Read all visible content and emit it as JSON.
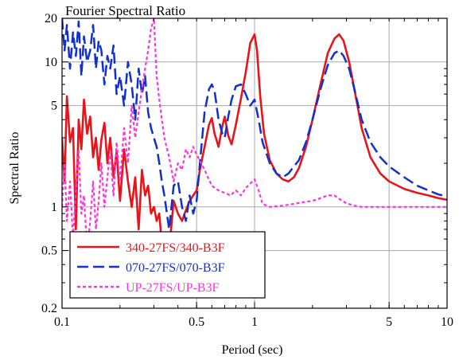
{
  "chart_data": {
    "type": "line",
    "title": "Fourier Spectral Ratio",
    "xlabel": "Period (sec)",
    "ylabel": "Spectral Ratio",
    "xscale": "log",
    "yscale": "log",
    "xlim": [
      0.1,
      10
    ],
    "ylim": [
      0.2,
      20
    ],
    "grid": true,
    "legend_position": "bottom-left",
    "x_ticks": [
      {
        "value": 0.1,
        "label": "0.1"
      },
      {
        "value": 0.5,
        "label": "0.5"
      },
      {
        "value": 1,
        "label": "1"
      },
      {
        "value": 5,
        "label": "5"
      },
      {
        "value": 10,
        "label": "10"
      }
    ],
    "y_ticks": [
      {
        "value": 0.2,
        "label": "0.2"
      },
      {
        "value": 0.5,
        "label": "0.5"
      },
      {
        "value": 1,
        "label": "1"
      },
      {
        "value": 5,
        "label": "5"
      },
      {
        "value": 10,
        "label": "10"
      },
      {
        "value": 20,
        "label": "20"
      }
    ],
    "series": [
      {
        "name": "340-27FS/340-B3F",
        "color": "#e8141a",
        "dash": "solid",
        "x": [
          0.1,
          0.103,
          0.106,
          0.11,
          0.114,
          0.118,
          0.122,
          0.126,
          0.13,
          0.135,
          0.14,
          0.145,
          0.15,
          0.155,
          0.16,
          0.166,
          0.172,
          0.178,
          0.185,
          0.192,
          0.2,
          0.21,
          0.22,
          0.23,
          0.24,
          0.25,
          0.26,
          0.27,
          0.28,
          0.29,
          0.3,
          0.31,
          0.32,
          0.33,
          0.34,
          0.36,
          0.38,
          0.4,
          0.42,
          0.44,
          0.46,
          0.48,
          0.5,
          0.52,
          0.55,
          0.58,
          0.6,
          0.62,
          0.65,
          0.68,
          0.7,
          0.73,
          0.76,
          0.8,
          0.85,
          0.9,
          0.95,
          1.0,
          1.03,
          1.07,
          1.12,
          1.2,
          1.3,
          1.4,
          1.5,
          1.6,
          1.7,
          1.85,
          2.0,
          2.2,
          2.4,
          2.6,
          2.75,
          2.9,
          3.1,
          3.3,
          3.6,
          4.0,
          4.5,
          5.0,
          6.0,
          7.0,
          8.0,
          9.0,
          10.0
        ],
        "y": [
          3.0,
          1.5,
          5.8,
          2.8,
          3.5,
          0.7,
          4.0,
          2.5,
          5.5,
          3.2,
          4.2,
          2.2,
          3.0,
          1.8,
          2.9,
          3.8,
          2.0,
          3.0,
          1.6,
          2.4,
          1.1,
          2.5,
          1.5,
          1.0,
          1.6,
          0.7,
          1.8,
          1.2,
          1.4,
          0.9,
          1.0,
          0.8,
          0.9,
          0.55,
          0.25,
          0.5,
          1.1,
          0.9,
          0.8,
          0.95,
          1.1,
          1.2,
          1.3,
          1.8,
          2.6,
          3.7,
          4.1,
          3.2,
          2.6,
          3.6,
          4.2,
          3.1,
          2.7,
          3.7,
          5.6,
          8.5,
          13.5,
          15.5,
          12.0,
          5.8,
          3.2,
          2.1,
          1.7,
          1.55,
          1.5,
          1.6,
          1.85,
          2.6,
          4.0,
          7.0,
          11.5,
          14.5,
          15.5,
          14.0,
          10.0,
          6.5,
          3.5,
          2.2,
          1.7,
          1.5,
          1.33,
          1.25,
          1.2,
          1.15,
          1.12
        ]
      },
      {
        "name": "070-27FS/070-B3F",
        "color": "#1030d0",
        "dash": "long-dash",
        "x": [
          0.1,
          0.103,
          0.106,
          0.11,
          0.114,
          0.118,
          0.122,
          0.126,
          0.13,
          0.135,
          0.14,
          0.145,
          0.15,
          0.155,
          0.16,
          0.166,
          0.172,
          0.178,
          0.185,
          0.192,
          0.2,
          0.21,
          0.22,
          0.23,
          0.24,
          0.25,
          0.26,
          0.27,
          0.28,
          0.29,
          0.3,
          0.31,
          0.32,
          0.33,
          0.34,
          0.36,
          0.38,
          0.4,
          0.42,
          0.44,
          0.46,
          0.48,
          0.5,
          0.52,
          0.55,
          0.58,
          0.6,
          0.62,
          0.65,
          0.68,
          0.7,
          0.73,
          0.76,
          0.8,
          0.85,
          0.9,
          0.95,
          1.0,
          1.05,
          1.1,
          1.2,
          1.3,
          1.4,
          1.5,
          1.6,
          1.7,
          1.85,
          2.0,
          2.2,
          2.4,
          2.6,
          2.75,
          2.9,
          3.1,
          3.3,
          3.6,
          4.0,
          4.5,
          5.0,
          6.0,
          7.0,
          8.0,
          9.0,
          10.0
        ],
        "y": [
          20,
          12,
          18,
          9,
          16,
          11,
          19,
          8,
          15,
          10,
          12,
          18,
          9,
          14,
          12,
          7,
          11,
          9,
          13,
          6,
          8,
          5,
          10,
          7,
          4,
          9,
          6,
          8,
          4.5,
          3.5,
          3.0,
          2.6,
          2.0,
          1.5,
          1.2,
          0.7,
          1.4,
          1.5,
          1.0,
          0.8,
          1.2,
          0.9,
          1.1,
          2.0,
          4.5,
          6.5,
          7.0,
          6.3,
          4.0,
          3.2,
          3.0,
          4.2,
          5.5,
          6.8,
          7.0,
          6.0,
          5.0,
          5.5,
          4.0,
          2.8,
          2.0,
          1.7,
          1.6,
          1.7,
          1.9,
          2.1,
          2.8,
          4.0,
          6.5,
          9.5,
          11.5,
          12.0,
          11.0,
          9.0,
          6.5,
          4.0,
          2.8,
          2.2,
          1.9,
          1.6,
          1.4,
          1.3,
          1.22,
          1.18
        ]
      },
      {
        "name": "UP-27FS/UP-B3F",
        "color": "#ff33dd",
        "dash": "short-dash",
        "x": [
          0.1,
          0.103,
          0.106,
          0.11,
          0.114,
          0.118,
          0.122,
          0.126,
          0.13,
          0.135,
          0.14,
          0.145,
          0.15,
          0.155,
          0.16,
          0.166,
          0.172,
          0.178,
          0.185,
          0.192,
          0.2,
          0.21,
          0.22,
          0.23,
          0.24,
          0.25,
          0.26,
          0.27,
          0.28,
          0.29,
          0.3,
          0.31,
          0.32,
          0.33,
          0.34,
          0.36,
          0.38,
          0.4,
          0.42,
          0.44,
          0.46,
          0.48,
          0.5,
          0.55,
          0.6,
          0.65,
          0.7,
          0.75,
          0.8,
          0.85,
          0.9,
          0.95,
          1.0,
          1.05,
          1.1,
          1.2,
          1.4,
          1.6,
          1.8,
          2.0,
          2.2,
          2.4,
          2.6,
          2.8,
          3.0,
          3.3,
          3.6,
          4.0,
          5.0,
          6.0,
          7.0,
          8.0,
          9.0,
          10.0
        ],
        "y": [
          1.0,
          2.0,
          0.8,
          1.5,
          0.6,
          1.3,
          2.5,
          0.9,
          1.2,
          0.5,
          0.8,
          1.5,
          0.7,
          1.1,
          2.0,
          1.0,
          1.6,
          2.5,
          1.2,
          2.8,
          1.5,
          3.5,
          2.0,
          5.0,
          3.0,
          4.5,
          6.5,
          9.0,
          12.0,
          17.0,
          20.0,
          8.0,
          5.5,
          4.0,
          3.0,
          2.2,
          1.5,
          2.0,
          1.8,
          2.5,
          2.2,
          2.6,
          2.3,
          1.8,
          1.4,
          1.3,
          1.25,
          1.2,
          1.3,
          1.2,
          1.35,
          1.45,
          1.55,
          1.3,
          1.05,
          1.0,
          1.02,
          1.05,
          1.08,
          1.1,
          1.15,
          1.2,
          1.2,
          1.12,
          1.06,
          1.02,
          1.0,
          1.0,
          1.0,
          1.0,
          1.0,
          1.0,
          1.0,
          1.0
        ]
      }
    ]
  }
}
